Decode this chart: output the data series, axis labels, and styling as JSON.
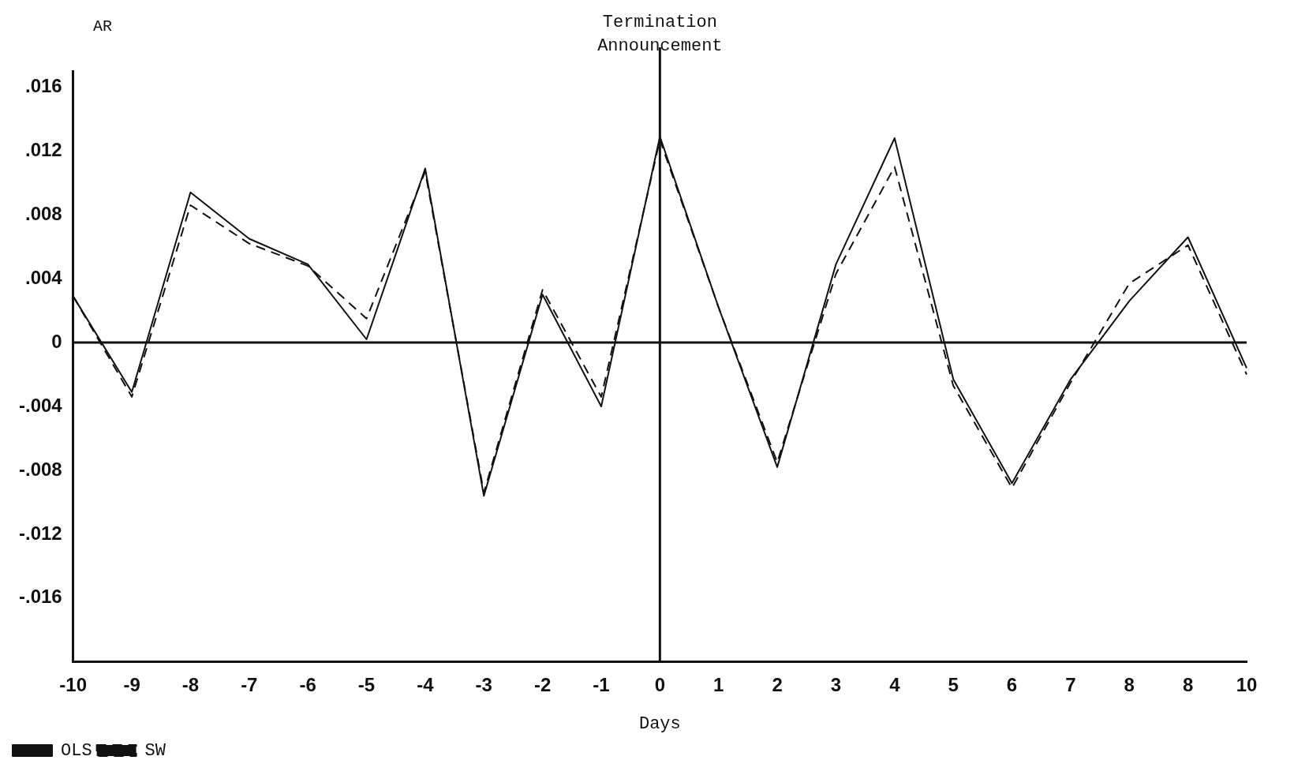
{
  "chart_data": {
    "type": "line",
    "xlabel": "Days",
    "ylabel": "AR",
    "categories": [
      "-10",
      "-9",
      "-8",
      "-7",
      "-6",
      "-5",
      "-4",
      "-3",
      "-2",
      "-1",
      "0",
      "1",
      "2",
      "3",
      "4",
      "5",
      "6",
      "7",
      "8",
      "8",
      "10"
    ],
    "series": [
      {
        "name": "OLS",
        "color": "#111111",
        "line_style": "solid",
        "values": [
          0.0029,
          -0.0031,
          0.0094,
          0.0065,
          0.0049,
          0.0002,
          0.0109,
          -0.0096,
          0.003,
          -0.004,
          0.0129,
          0.0022,
          -0.0078,
          0.0049,
          0.0128,
          -0.0023,
          -0.0088,
          -0.0023,
          0.0026,
          0.0066,
          -0.0016
        ]
      },
      {
        "name": "SW",
        "color": "#111111",
        "line_style": "dashed",
        "values": [
          0.0029,
          -0.0034,
          0.0086,
          0.0062,
          0.0048,
          0.0015,
          0.0107,
          -0.0094,
          0.0033,
          -0.0034,
          0.0127,
          0.0022,
          -0.0075,
          0.0043,
          0.011,
          -0.0027,
          -0.0091,
          -0.0025,
          0.0037,
          0.0061,
          -0.002
        ]
      }
    ],
    "ylim": [
      -0.02,
      0.017
    ],
    "yticks": [
      {
        "value": 0.016,
        "label": ".016"
      },
      {
        "value": 0.012,
        "label": ".012"
      },
      {
        "value": 0.008,
        "label": ".008"
      },
      {
        "value": 0.004,
        "label": ".004"
      },
      0,
      {
        "value": -0.004,
        "label": "-.004"
      },
      {
        "value": -0.008,
        "label": "-.008"
      },
      {
        "value": -0.012,
        "label": "-.012"
      },
      {
        "value": -0.016,
        "label": "-.016"
      }
    ],
    "ref_lines": [
      {
        "axis": "x",
        "value": "0",
        "label": "Termination Announcement"
      },
      {
        "axis": "y",
        "value": 0
      }
    ],
    "grid": false,
    "legend": "bottom left",
    "marker": "none"
  }
}
